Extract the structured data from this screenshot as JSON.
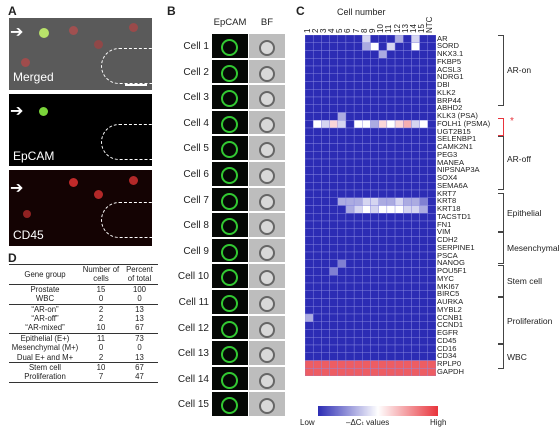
{
  "panel_labels": {
    "a": "A",
    "b": "B",
    "c": "C",
    "d": "D"
  },
  "panel_a": {
    "captions": [
      "Merged",
      "EpCAM",
      "CD45"
    ]
  },
  "panel_b": {
    "col_headers": {
      "epcam": "EpCAM",
      "bf": "BF"
    },
    "cells": [
      "Cell 1",
      "Cell 2",
      "Cell 3",
      "Cell 4",
      "Cell 5",
      "Cell 6",
      "Cell 7",
      "Cell 8",
      "Cell 9",
      "Cell 10",
      "Cell 11",
      "Cell 12",
      "Cell 13",
      "Cell 14",
      "Cell 15"
    ]
  },
  "panel_c": {
    "title": "Cell number",
    "columns": [
      "1",
      "2",
      "3",
      "4",
      "5",
      "6",
      "7",
      "8",
      "9",
      "10",
      "11",
      "12",
      "13",
      "14",
      "15",
      "NTC"
    ],
    "genes": [
      "AR",
      "SORD",
      "NKX3.1",
      "FKBP5",
      "ACSL3",
      "NDRG1",
      "DBI",
      "KLK2",
      "BRP44",
      "ABHD2",
      "KLK3 (PSA)",
      "FOLH1 (PSMA)",
      "UGT2B15",
      "SELENBP1",
      "CAMK2N1",
      "PEG3",
      "MANEA",
      "NIPSNAP3A",
      "SOX4",
      "SEMA6A",
      "KRT7",
      "KRT8",
      "KRT18",
      "TACSTD1",
      "FN1",
      "VIM",
      "CDH2",
      "SERPINE1",
      "PSCA",
      "NANOG",
      "POU5F1",
      "MYC",
      "MKI67",
      "BIRC5",
      "AURKA",
      "MYBL2",
      "CCNB1",
      "CCND1",
      "EGFR",
      "CD45",
      "CD16",
      "CD34",
      "RPLP0",
      "GAPDH"
    ],
    "groups": [
      "AR-on",
      "AR-off",
      "Epithelial",
      "Mesenchymal",
      "Stem cell",
      "Proliferation",
      "WBC"
    ],
    "star": "*",
    "legend": {
      "low": "Low",
      "mid": "–ΔCₜ values",
      "high": "High"
    },
    "colors": {
      "low": "#2c2cb4",
      "mid": "#ffffff",
      "high": "#e8343c",
      "grid": "#8a8ae0",
      "bracket_red": "#e8343c"
    }
  },
  "chart_data": {
    "type": "heatmap",
    "title": "Cell number",
    "x": [
      "1",
      "2",
      "3",
      "4",
      "5",
      "6",
      "7",
      "8",
      "9",
      "10",
      "11",
      "12",
      "13",
      "14",
      "15",
      "NTC"
    ],
    "y": [
      "AR",
      "SORD",
      "NKX3.1",
      "FKBP5",
      "ACSL3",
      "NDRG1",
      "DBI",
      "KLK2",
      "BRP44",
      "ABHD2",
      "KLK3 (PSA)",
      "FOLH1 (PSMA)",
      "UGT2B15",
      "SELENBP1",
      "CAMK2N1",
      "PEG3",
      "MANEA",
      "NIPSNAP3A",
      "SOX4",
      "SEMA6A",
      "KRT7",
      "KRT8",
      "KRT18",
      "TACSTD1",
      "FN1",
      "VIM",
      "CDH2",
      "SERPINE1",
      "PSCA",
      "NANOG",
      "POU5F1",
      "MYC",
      "MKI67",
      "BIRC5",
      "AURKA",
      "MYBL2",
      "CCNB1",
      "CCND1",
      "EGFR",
      "CD45",
      "CD16",
      "CD34",
      "RPLP0",
      "GAPDH"
    ],
    "scale_labels": [
      "Low",
      "High"
    ],
    "values": [
      [
        0,
        0,
        0,
        0,
        0,
        0,
        0,
        0.4,
        0,
        0,
        0,
        0.3,
        0,
        0.4,
        0,
        0
      ],
      [
        0,
        0,
        0,
        0,
        0,
        0,
        0,
        0.3,
        0.5,
        0,
        0.4,
        0,
        0,
        0.5,
        0,
        0
      ],
      [
        0,
        0,
        0,
        0,
        0,
        0,
        0,
        0,
        0,
        0.3,
        0,
        0,
        0,
        0,
        0,
        0
      ],
      [
        0,
        0,
        0,
        0,
        0,
        0,
        0,
        0,
        0,
        0,
        0,
        0,
        0,
        0,
        0,
        0
      ],
      [
        0,
        0,
        0,
        0,
        0,
        0,
        0,
        0,
        0,
        0,
        0,
        0,
        0,
        0,
        0,
        0
      ],
      [
        0,
        0,
        0,
        0,
        0,
        0,
        0,
        0,
        0,
        0,
        0,
        0,
        0,
        0,
        0,
        0
      ],
      [
        0,
        0,
        0,
        0,
        0,
        0,
        0,
        0,
        0,
        0,
        0,
        0,
        0,
        0,
        0,
        0
      ],
      [
        0,
        0,
        0,
        0,
        0,
        0,
        0,
        0,
        0,
        0,
        0,
        0,
        0,
        0,
        0,
        0
      ],
      [
        0,
        0,
        0,
        0,
        0,
        0,
        0,
        0,
        0,
        0,
        0,
        0,
        0,
        0,
        0,
        0
      ],
      [
        0,
        0,
        0,
        0,
        0,
        0,
        0,
        0,
        0,
        0,
        0,
        0,
        0,
        0,
        0,
        0
      ],
      [
        0,
        0,
        0,
        0,
        0.3,
        0,
        0,
        0,
        0,
        0,
        0,
        0,
        0,
        0,
        0,
        0
      ],
      [
        0,
        0.5,
        0.4,
        0.6,
        0.4,
        0,
        0.5,
        0.5,
        0.3,
        0.6,
        0.5,
        0.6,
        0.7,
        0.4,
        0.5,
        0
      ],
      [
        0,
        0,
        0,
        0,
        0,
        0,
        0,
        0,
        0,
        0,
        0,
        0,
        0,
        0,
        0,
        0
      ],
      [
        0,
        0,
        0,
        0,
        0,
        0,
        0,
        0,
        0,
        0,
        0,
        0,
        0,
        0,
        0,
        0
      ],
      [
        0,
        0,
        0,
        0,
        0,
        0,
        0,
        0,
        0,
        0,
        0,
        0,
        0,
        0,
        0,
        0
      ],
      [
        0,
        0,
        0,
        0,
        0,
        0,
        0,
        0,
        0,
        0,
        0,
        0,
        0,
        0,
        0,
        0
      ],
      [
        0,
        0,
        0,
        0,
        0,
        0,
        0,
        0,
        0,
        0,
        0,
        0,
        0,
        0,
        0,
        0
      ],
      [
        0,
        0,
        0,
        0,
        0,
        0,
        0,
        0,
        0,
        0,
        0,
        0,
        0,
        0,
        0,
        0
      ],
      [
        0,
        0,
        0,
        0,
        0,
        0,
        0,
        0,
        0,
        0,
        0,
        0,
        0,
        0,
        0,
        0
      ],
      [
        0,
        0,
        0,
        0,
        0,
        0,
        0,
        0,
        0,
        0,
        0,
        0,
        0,
        0,
        0,
        0
      ],
      [
        0,
        0,
        0,
        0,
        0,
        0,
        0,
        0,
        0,
        0,
        0,
        0,
        0,
        0,
        0,
        0
      ],
      [
        0,
        0,
        0,
        0,
        0.3,
        0.3,
        0.3,
        0.4,
        0.4,
        0.3,
        0.3,
        0.4,
        0.3,
        0.3,
        0.2,
        0
      ],
      [
        0,
        0,
        0,
        0,
        0,
        0.3,
        0.4,
        0.5,
        0.4,
        0.5,
        0.5,
        0.5,
        0.4,
        0.4,
        0.3,
        0
      ],
      [
        0,
        0,
        0,
        0,
        0,
        0,
        0,
        0,
        0,
        0,
        0,
        0,
        0,
        0,
        0,
        0
      ],
      [
        0,
        0,
        0,
        0,
        0,
        0,
        0,
        0,
        0,
        0,
        0,
        0,
        0,
        0,
        0,
        0
      ],
      [
        0,
        0,
        0,
        0,
        0,
        0,
        0,
        0,
        0,
        0,
        0,
        0,
        0,
        0,
        0,
        0
      ],
      [
        0,
        0,
        0,
        0,
        0,
        0,
        0,
        0,
        0,
        0,
        0,
        0,
        0,
        0,
        0,
        0
      ],
      [
        0,
        0,
        0,
        0,
        0,
        0,
        0,
        0,
        0,
        0,
        0,
        0,
        0,
        0,
        0,
        0
      ],
      [
        0,
        0,
        0,
        0,
        0,
        0,
        0,
        0,
        0,
        0,
        0,
        0,
        0,
        0,
        0,
        0
      ],
      [
        0,
        0,
        0,
        0,
        0.2,
        0,
        0,
        0,
        0,
        0,
        0,
        0,
        0,
        0,
        0,
        0
      ],
      [
        0,
        0,
        0,
        0.2,
        0,
        0,
        0,
        0,
        0,
        0,
        0,
        0,
        0,
        0,
        0,
        0
      ],
      [
        0,
        0,
        0,
        0,
        0,
        0,
        0,
        0,
        0,
        0,
        0,
        0,
        0,
        0,
        0,
        0
      ],
      [
        0,
        0,
        0,
        0,
        0,
        0,
        0,
        0,
        0,
        0,
        0,
        0,
        0,
        0,
        0,
        0
      ],
      [
        0,
        0,
        0,
        0,
        0,
        0,
        0,
        0,
        0,
        0,
        0,
        0,
        0,
        0,
        0,
        0
      ],
      [
        0,
        0,
        0,
        0,
        0,
        0,
        0,
        0,
        0,
        0,
        0,
        0,
        0,
        0,
        0,
        0
      ],
      [
        0,
        0,
        0,
        0,
        0,
        0,
        0,
        0,
        0,
        0,
        0,
        0,
        0,
        0,
        0,
        0
      ],
      [
        0.3,
        0,
        0,
        0,
        0,
        0,
        0,
        0,
        0,
        0,
        0,
        0,
        0,
        0,
        0,
        0
      ],
      [
        0,
        0,
        0,
        0,
        0,
        0,
        0,
        0,
        0,
        0,
        0,
        0,
        0,
        0,
        0,
        0
      ],
      [
        0,
        0,
        0,
        0,
        0,
        0,
        0,
        0,
        0,
        0,
        0,
        0,
        0,
        0,
        0,
        0
      ],
      [
        0,
        0,
        0,
        0,
        0,
        0,
        0,
        0,
        0,
        0,
        0,
        0,
        0,
        0,
        0,
        0
      ],
      [
        0,
        0,
        0,
        0,
        0,
        0,
        0,
        0,
        0,
        0,
        0,
        0,
        0,
        0,
        0,
        0
      ],
      [
        0,
        0,
        0,
        0,
        0,
        0,
        0,
        0,
        0,
        0,
        0,
        0,
        0,
        0,
        0,
        0
      ],
      [
        0.9,
        0.9,
        0.9,
        0.9,
        0.9,
        0.9,
        0.9,
        0.9,
        0.9,
        0.9,
        0.9,
        0.9,
        0.9,
        0.9,
        0.9,
        0.9
      ],
      [
        0.9,
        0.9,
        0.9,
        0.9,
        0.9,
        0.9,
        0.9,
        0.9,
        0.9,
        0.9,
        0.9,
        0.9,
        0.9,
        0.9,
        0.9,
        0.9
      ]
    ]
  },
  "panel_d": {
    "headers": [
      "Gene group",
      "Number of cells",
      "Percent of total"
    ],
    "rows": [
      [
        "Prostate",
        "15",
        "100"
      ],
      [
        "WBC",
        "0",
        "0"
      ],
      [
        "“AR-on”",
        "2",
        "13"
      ],
      [
        "“AR-off”",
        "2",
        "13"
      ],
      [
        "“AR-mixed”",
        "10",
        "67"
      ],
      [
        "Epithelial (E+)",
        "11",
        "73"
      ],
      [
        "Mesenchymal (M+)",
        "0",
        "0"
      ],
      [
        "Dual E+ and M+",
        "2",
        "13"
      ],
      [
        "Stem cell",
        "10",
        "67"
      ],
      [
        "Proliferation",
        "7",
        "47"
      ]
    ]
  }
}
